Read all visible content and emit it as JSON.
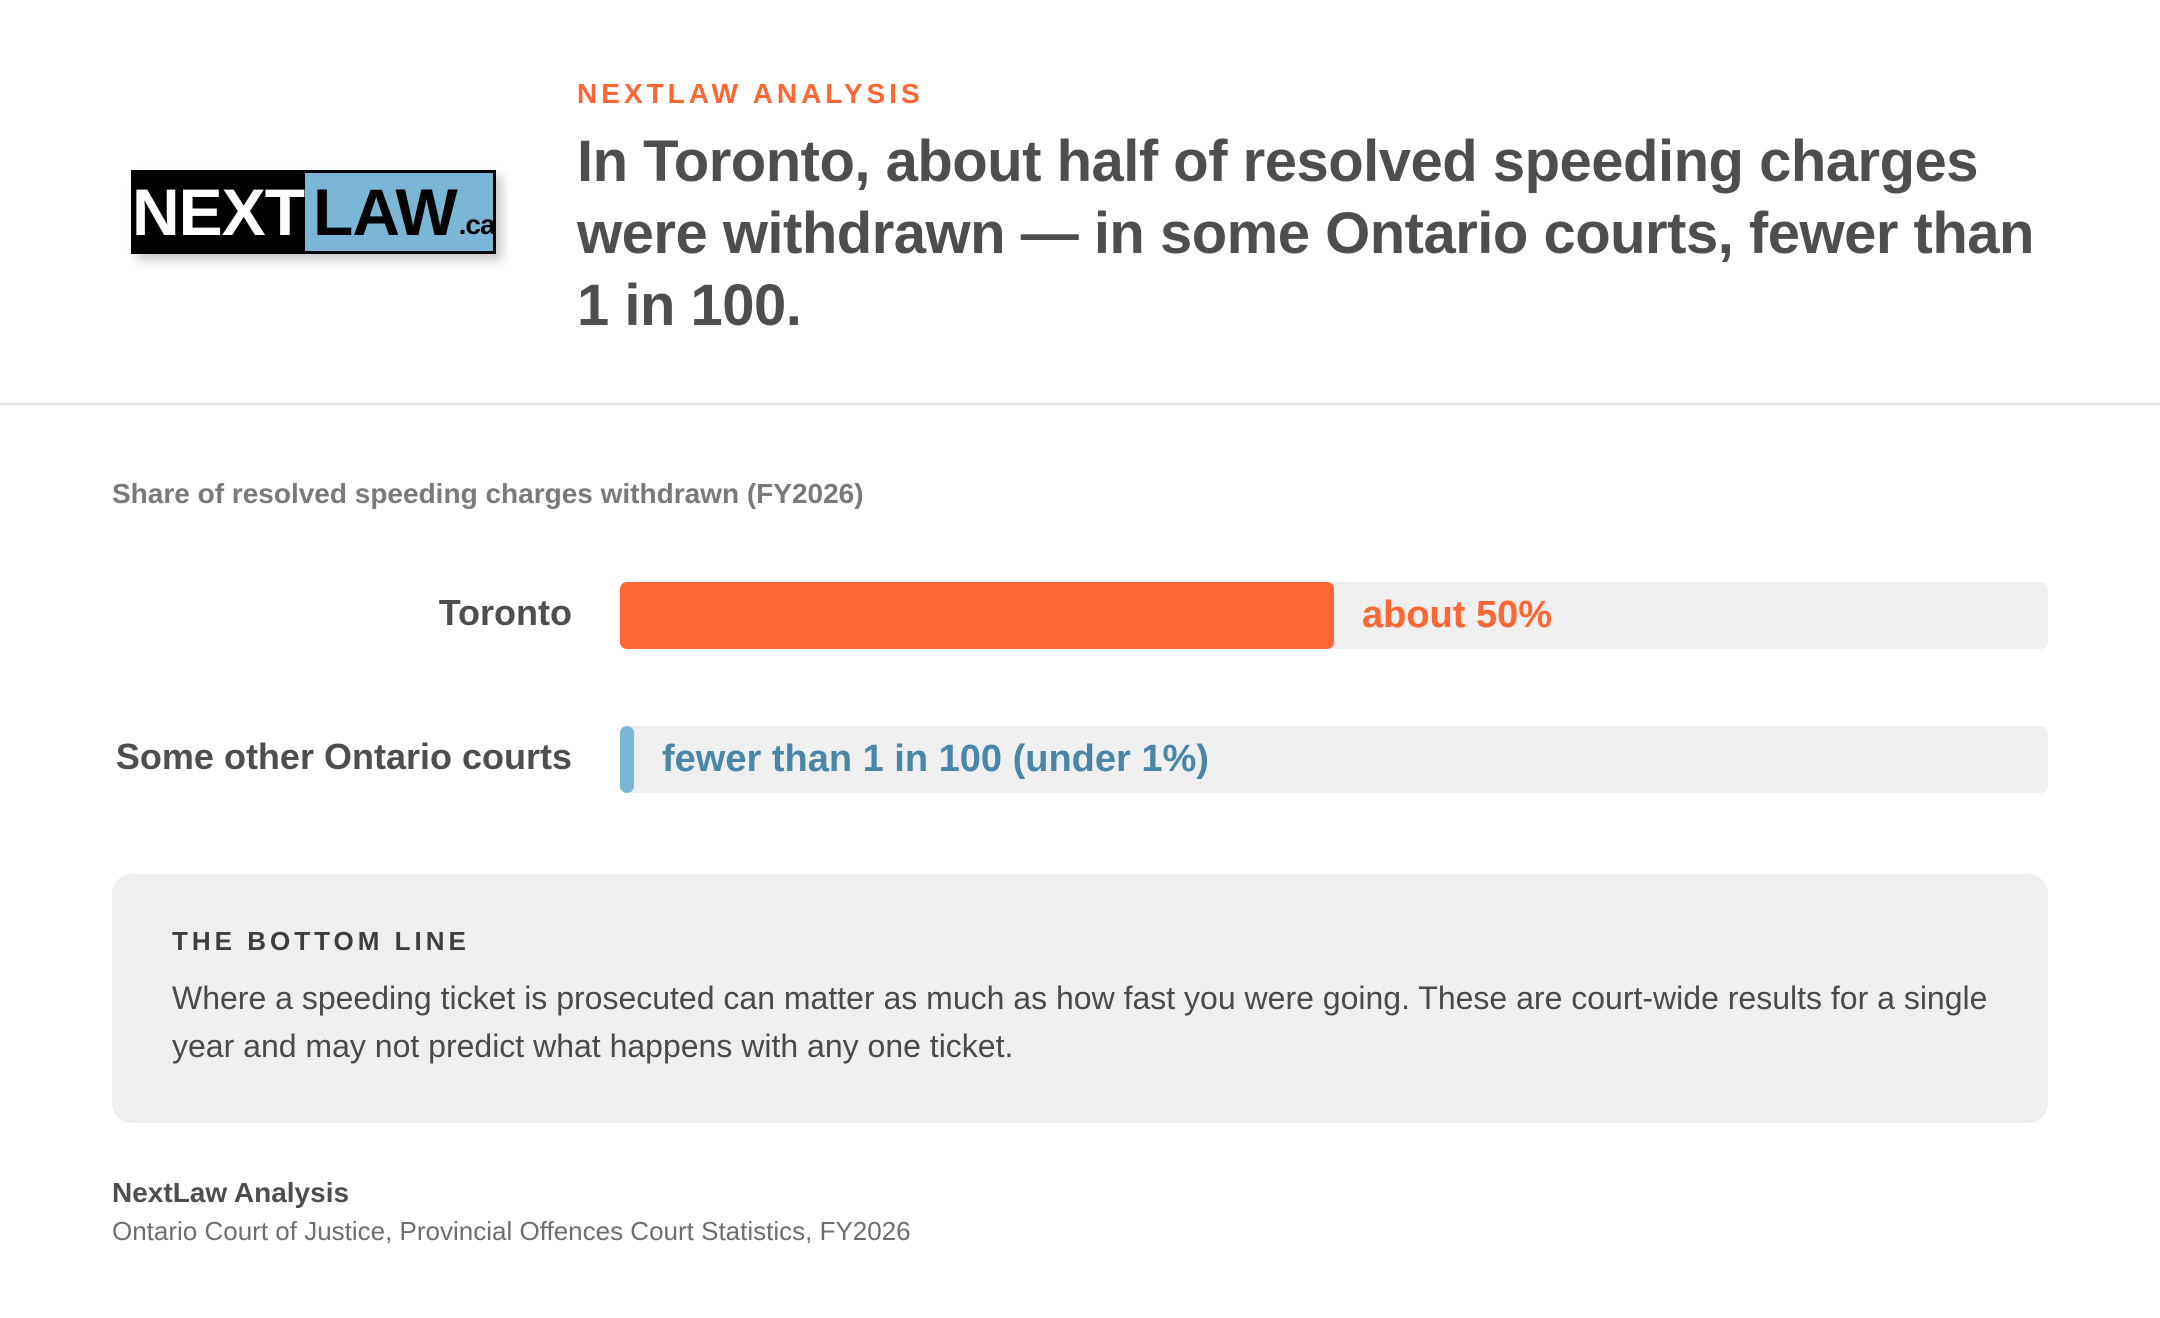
{
  "header": {
    "kicker": "NEXTLAW ANALYSIS",
    "headline": "In Toronto, about half of resolved speeding charges were withdrawn — in some Ontario courts, fewer than 1 in 100.",
    "logo": {
      "part1": "NEXT",
      "part2": "LAW",
      "suffix": ".ca"
    }
  },
  "colors": {
    "accent": "#ff6633",
    "secondary": "#7ab6d6",
    "secondary_text": "#4a86a8",
    "track": "#efefef"
  },
  "chart_data": {
    "type": "bar",
    "orientation": "horizontal",
    "title": "Share of resolved speeding charges withdrawn (FY2026)",
    "categories": [
      "Toronto",
      "Some other Ontario courts"
    ],
    "values": [
      50,
      1
    ],
    "value_labels": [
      "about 50%",
      "fewer than 1 in 100 (under 1%)"
    ],
    "xlim": [
      0,
      100
    ],
    "bar_colors": [
      "#ff6633",
      "#7ab6d6"
    ],
    "label_colors": [
      "#ff6633",
      "#4a86a8"
    ],
    "grid": false
  },
  "bottom_line": {
    "heading": "THE BOTTOM LINE",
    "text": "Where a speeding ticket is prosecuted can matter as much as how fast you were going. These are court-wide results for a single year and may not predict what happens with any one ticket."
  },
  "source": {
    "title": "NextLaw Analysis",
    "text": "Ontario Court of Justice, Provincial Offences Court Statistics, FY2026"
  }
}
